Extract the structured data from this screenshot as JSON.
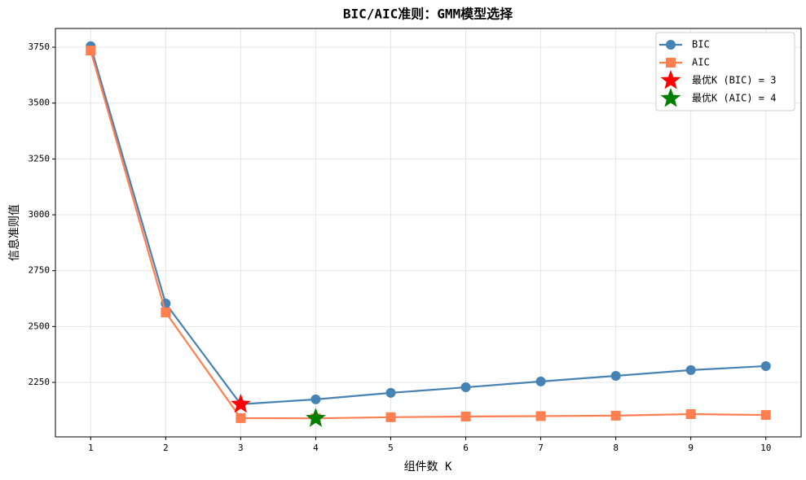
{
  "chart_data": {
    "type": "line",
    "title": "BIC/AIC准则：GMM模型选择",
    "x_label": "组件数 K",
    "y_label": "信息准则值",
    "x": [
      1,
      2,
      3,
      4,
      5,
      6,
      7,
      8,
      9,
      10
    ],
    "series": [
      {
        "name": "BIC",
        "color": "#4682b4",
        "marker": "circle",
        "values": [
          3755,
          2603,
          2152,
          2174,
          2203,
          2228,
          2254,
          2279,
          2305,
          2323
        ]
      },
      {
        "name": "AIC",
        "color": "#ff7f50",
        "marker": "square",
        "values": [
          3735,
          2563,
          2090,
          2089,
          2094,
          2097,
          2099,
          2101,
          2108,
          2104
        ]
      },
      {
        "name": "最优K (BIC) = 3",
        "color": "#ff0000",
        "marker": "star",
        "x": [
          3
        ],
        "values": [
          2152
        ]
      },
      {
        "name": "最优K (AIC) = 4",
        "color": "#008000",
        "marker": "star",
        "x": [
          4
        ],
        "values": [
          2089
        ]
      }
    ],
    "xlim": [
      0.53,
      10.47
    ],
    "ylim": [
      2006,
      3834
    ],
    "xticks": [
      1,
      2,
      3,
      4,
      5,
      6,
      7,
      8,
      9,
      10
    ],
    "yticks": [
      2250,
      2500,
      2750,
      3000,
      3250,
      3500,
      3750
    ],
    "grid": true,
    "legend": "upper right"
  }
}
